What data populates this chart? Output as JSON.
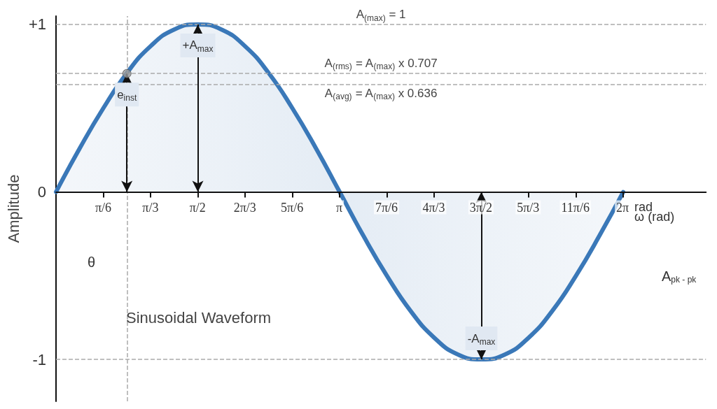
{
  "chart_data": {
    "type": "area",
    "title": "Sinusoidal Waveform",
    "xlabel": "ω (rad)",
    "ylabel": "Amplitude",
    "xlim": [
      0,
      7.2
    ],
    "ylim": [
      -1.25,
      1.05
    ],
    "xticks": [
      {
        "value": 0.524,
        "label": "π/6"
      },
      {
        "value": 1.047,
        "label": "π/3"
      },
      {
        "value": 1.571,
        "label": "π/2"
      },
      {
        "value": 2.094,
        "label": "2π/3"
      },
      {
        "value": 2.618,
        "label": "5π/6"
      },
      {
        "value": 3.142,
        "label": "π"
      },
      {
        "value": 3.665,
        "label": "7π/6"
      },
      {
        "value": 4.189,
        "label": "4π/3"
      },
      {
        "value": 4.712,
        "label": "3π/2"
      },
      {
        "value": 5.236,
        "label": "5π/3"
      },
      {
        "value": 5.76,
        "label": "11π/6"
      },
      {
        "value": 6.283,
        "label": "2π"
      }
    ],
    "yticks": [
      {
        "value": 1,
        "label": "+1"
      },
      0,
      -1
    ],
    "grid": false,
    "series": [
      {
        "color": "#3a78b8",
        "x": [
          0,
          0.262,
          0.524,
          0.785,
          1.047,
          1.309,
          1.571,
          1.833,
          2.094,
          2.356,
          2.618,
          2.88,
          3.142,
          3.403,
          3.665,
          3.927,
          4.189,
          4.451,
          4.712,
          4.974,
          5.236,
          5.498,
          5.76,
          6.021,
          6.283
        ],
        "values": [
          0,
          0.26,
          0.5,
          0.71,
          0.87,
          0.97,
          1,
          0.97,
          0.87,
          0.71,
          0.5,
          0.26,
          0,
          -0.26,
          -0.5,
          -0.71,
          -0.87,
          -0.97,
          -1,
          -0.97,
          -0.87,
          -0.71,
          -0.5,
          -0.26,
          0
        ]
      },
      {
        "type": "scatter",
        "color": "#999999",
        "marker": "circle",
        "x": [
          0.785
        ],
        "values": [
          0.707
        ]
      }
    ],
    "ref_lines": [
      {
        "axis": "y",
        "value": 1,
        "label": "A$_{(max)}$ = 1",
        "color": "#aaaaaa",
        "line_style": "dashed"
      },
      {
        "axis": "y",
        "value": 0.707,
        "label": "A$_{(rms)}$ = A$_{(max)}$ x 0.707",
        "color": "#aaaaaa",
        "line_style": "dashed"
      },
      {
        "axis": "y",
        "value": 0.636,
        "label": "A$_{(avg)}$ = A$_{(max)}$ x 0.636",
        "color": "#aaaaaa",
        "line_style": "dashed"
      },
      {
        "axis": "y",
        "value": -1,
        "color": "#aaaaaa",
        "line_style": "dashed"
      },
      {
        "axis": "x",
        "value": 0.785,
        "color": "#aaaaaa",
        "line_style": "dashed"
      }
    ],
    "annotations": [
      {
        "text": "e$_{inst}$",
        "x": 0.785,
        "y": 0.707
      },
      {
        "text": "+A$_{max}$",
        "x": 1.571,
        "y": 1
      },
      {
        "text": "-A$_{max}$",
        "x": 4.712,
        "y": -1
      },
      "θ",
      "A$_{pk - pk}$",
      "rad"
    ]
  }
}
